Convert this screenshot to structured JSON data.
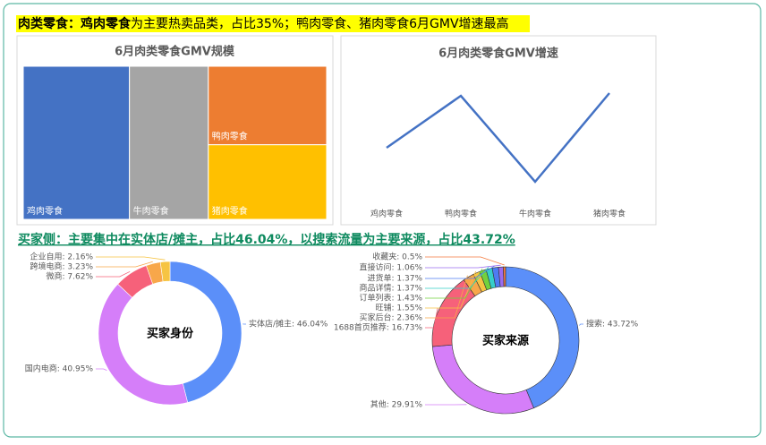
{
  "headline1": {
    "bold": "肉类零食：鸡肉零食",
    "text": "为主要热卖品类，占比35%；鸭肉零食、猪肉零食6月GMV增速最高"
  },
  "headline2": "买家侧：主要集中在实体店/摊主，占比46.04%，以搜索流量为主要来源，占比43.72%",
  "chart_data": [
    {
      "type": "treemap",
      "title": "6月肉类零食GMV规模",
      "categories": [
        "鸡肉零食",
        "牛肉零食",
        "鸭肉零食",
        "猪肉零食"
      ],
      "values": [
        35,
        26,
        20,
        19
      ],
      "colors": [
        "#4472c4",
        "#a5a5a5",
        "#ed7d31",
        "#ffc000"
      ]
    },
    {
      "type": "line",
      "title": "6月肉类零食GMV增速",
      "categories": [
        "鸡肉零食",
        "鸭肉零食",
        "牛肉零食",
        "猪肉零食"
      ],
      "values": [
        60,
        118,
        22,
        121
      ],
      "color": "#4472c4"
    },
    {
      "type": "donut",
      "center_label": "买家身份",
      "values": [
        46.04,
        40.95,
        7.62,
        3.23,
        2.16
      ],
      "value_labels": [
        "实体店/摊主: 46.04%",
        "国内电商: 40.95%",
        "微商: 7.62%",
        "跨境电商: 3.23%",
        "企业自用: 2.16%"
      ],
      "colors": [
        "#5b8ff9",
        "#d57ef9",
        "#f6617a",
        "#f8a74a",
        "#f6c443"
      ]
    },
    {
      "type": "donut",
      "center_label": "买家来源",
      "values": [
        43.72,
        29.91,
        16.73,
        2.36,
        1.55,
        1.43,
        1.37,
        1.37,
        1.06,
        0.5
      ],
      "value_labels": [
        "搜索: 43.72%",
        "其他: 29.91%",
        "1688首页推荐: 16.73%",
        "买家后台: 2.36%",
        "旺铺: 1.55%",
        "订单列表: 1.43%",
        "商品详情: 1.37%",
        "进货单: 1.37%",
        "直接访问: 1.06%",
        "收藏夹: 0.5%"
      ],
      "colors": [
        "#5b8ff9",
        "#d57ef9",
        "#f6617a",
        "#f8a74a",
        "#f6c443",
        "#73d13d",
        "#36cfc9",
        "#4e7bf2",
        "#9b6cf0",
        "#f57a3c"
      ]
    }
  ]
}
